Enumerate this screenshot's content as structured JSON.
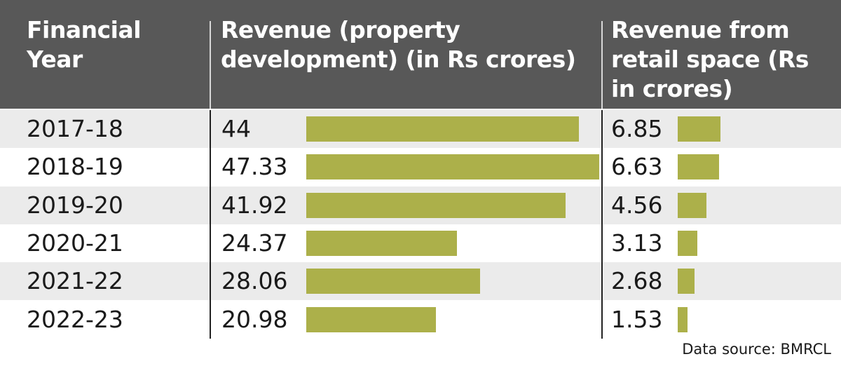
{
  "header": {
    "year_label": "Financial Year",
    "dev_label": "Revenue (property development) (in Rs crores)",
    "retail_label": "Revenue from retail space (Rs in crores)"
  },
  "chart_data": {
    "type": "table",
    "columns": [
      "Financial Year",
      "Revenue (property development) (in Rs crores)",
      "Revenue from retail space (Rs in crores)"
    ],
    "categories": [
      "2017-18",
      "2018-19",
      "2019-20",
      "2020-21",
      "2021-22",
      "2022-23"
    ],
    "series": [
      {
        "name": "Revenue (property development) (in Rs crores)",
        "values": [
          44,
          47.33,
          41.92,
          24.37,
          28.06,
          20.98
        ],
        "labels": [
          "44",
          "47.33",
          "41.92",
          "24.37",
          "28.06",
          "20.98"
        ]
      },
      {
        "name": "Revenue from retail space (Rs in crores)",
        "values": [
          6.85,
          6.63,
          4.56,
          3.13,
          2.68,
          1.53
        ],
        "labels": [
          "6.85",
          "6.63",
          "4.56",
          "3.13",
          "2.68",
          "1.53"
        ]
      }
    ],
    "bar_color": "#acb04a"
  },
  "footer": {
    "source": "Data source: BMRCL"
  }
}
